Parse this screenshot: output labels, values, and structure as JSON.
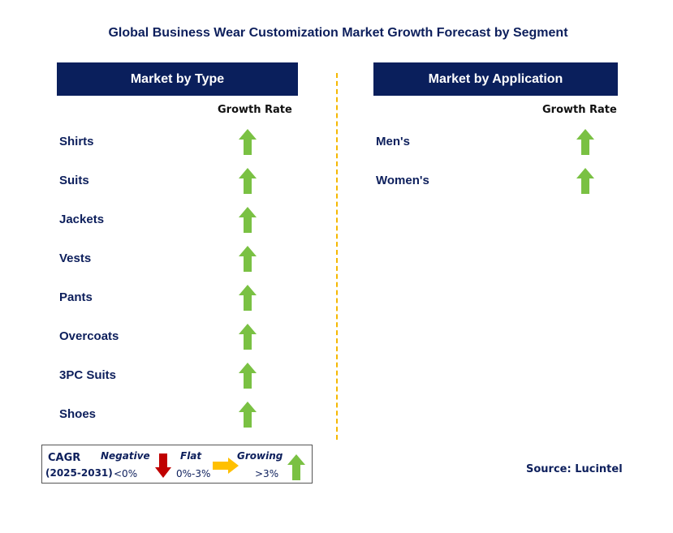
{
  "title": "Global Business Wear Customization Market Growth Forecast by Segment",
  "chart_data": [
    {
      "type": "table",
      "header": "Market by Type",
      "column": "Growth Rate",
      "rows": [
        {
          "label": "Shirts",
          "trend": "growing"
        },
        {
          "label": "Suits",
          "trend": "growing"
        },
        {
          "label": "Jackets",
          "trend": "growing"
        },
        {
          "label": "Vests",
          "trend": "growing"
        },
        {
          "label": "Pants",
          "trend": "growing"
        },
        {
          "label": "Overcoats",
          "trend": "growing"
        },
        {
          "label": "3PC Suits",
          "trend": "growing"
        },
        {
          "label": "Shoes",
          "trend": "growing"
        }
      ]
    },
    {
      "type": "table",
      "header": "Market by Application",
      "column": "Growth Rate",
      "rows": [
        {
          "label": "Men's",
          "trend": "growing"
        },
        {
          "label": "Women's",
          "trend": "growing"
        }
      ]
    }
  ],
  "legend": {
    "cagr": "CAGR",
    "years": "(2025-2031)",
    "negative": {
      "label": "Negative",
      "range": "<0%",
      "icon": "down-arrow-icon",
      "color": "#c00000"
    },
    "flat": {
      "label": "Flat",
      "range": "0%-3%",
      "icon": "right-arrow-icon",
      "color": "#ffc000"
    },
    "growing": {
      "label": "Growing",
      "range": ">3%",
      "icon": "up-arrow-icon",
      "color": "#7ac143"
    }
  },
  "source": "Source: Lucintel",
  "colors": {
    "header_bg": "#0a1f5c",
    "text": "#0d1f5c",
    "divider": "#f5b800"
  }
}
